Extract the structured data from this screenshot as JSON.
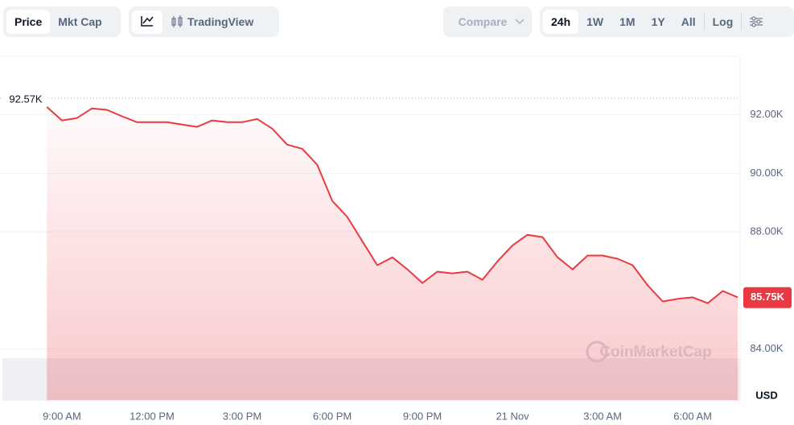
{
  "toolbar": {
    "view_tabs": [
      "Price",
      "Mkt Cap"
    ],
    "tradingview": "TradingView",
    "compare": "Compare",
    "ranges": [
      "24h",
      "1W",
      "1M",
      "1Y",
      "All"
    ],
    "log": "Log"
  },
  "chart_data": {
    "type": "line",
    "categories": [
      null,
      "9:00 AM",
      null,
      null,
      null,
      null,
      null,
      "12:00 PM",
      null,
      null,
      null,
      null,
      null,
      "3:00 PM",
      null,
      null,
      null,
      null,
      null,
      "6:00 PM",
      null,
      null,
      null,
      null,
      null,
      "9:00 PM",
      null,
      null,
      null,
      null,
      null,
      "21 Nov",
      null,
      null,
      null,
      null,
      null,
      "3:00 AM",
      null,
      null,
      null,
      null,
      null,
      "6:00 AM",
      null,
      null,
      null
    ],
    "series": [
      {
        "name": "Price",
        "color": "#ea3943",
        "values": [
          92270,
          91810,
          91890,
          92220,
          92170,
          91950,
          91750,
          91750,
          91750,
          91670,
          91590,
          91810,
          91750,
          91750,
          91860,
          91530,
          90980,
          90840,
          90290,
          89060,
          88510,
          87680,
          86860,
          87130,
          86720,
          86250,
          86640,
          86580,
          86640,
          86360,
          86990,
          87540,
          87900,
          87820,
          87130,
          86720,
          87190,
          87190,
          87080,
          86860,
          86170,
          85620,
          85710,
          85760,
          85560,
          85980,
          85760
        ]
      }
    ],
    "ylim": [
      82250,
      94000
    ],
    "yticks": [
      {
        "value": 84000,
        "label": "84.00K"
      },
      {
        "value": 88000,
        "label": "88.00K"
      },
      {
        "value": 90000,
        "label": "90.00K"
      },
      {
        "value": 92000,
        "label": "92.00K"
      }
    ],
    "grid": true,
    "open_price": {
      "value": 92570,
      "label": "92.57K"
    },
    "last_price": {
      "value": 85750,
      "label": "85.75K"
    },
    "y_unit": "USD",
    "watermark": "CoinMarketCap"
  }
}
